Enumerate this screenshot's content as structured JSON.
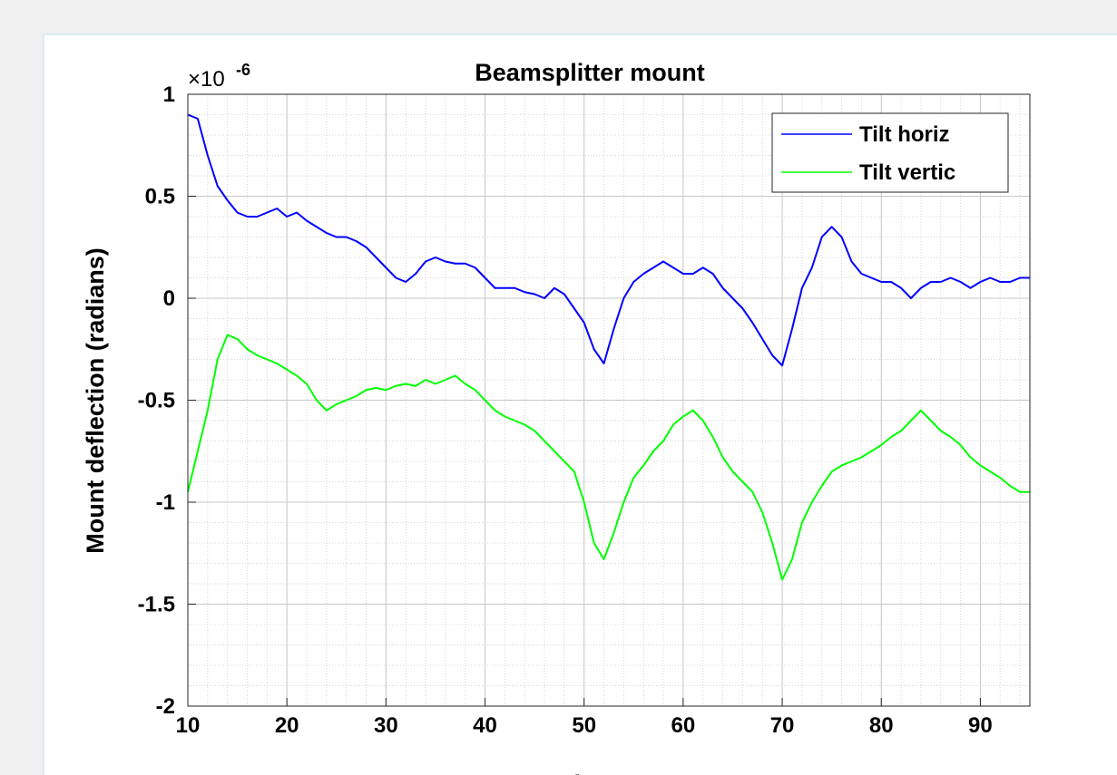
{
  "chart_data": {
    "type": "line",
    "title": "Beamsplitter mount",
    "xlabel": "hours",
    "ylabel": "Mount deflection (radians)",
    "y_multiplier": "×10",
    "y_multiplier_exponent": "-6",
    "x": [
      10,
      11,
      12,
      13,
      14,
      15,
      16,
      17,
      18,
      19,
      20,
      21,
      22,
      23,
      24,
      25,
      26,
      27,
      28,
      29,
      30,
      31,
      32,
      33,
      34,
      35,
      36,
      37,
      38,
      39,
      40,
      41,
      42,
      43,
      44,
      45,
      46,
      47,
      48,
      49,
      50,
      51,
      52,
      53,
      54,
      55,
      56,
      57,
      58,
      59,
      60,
      61,
      62,
      63,
      64,
      65,
      66,
      67,
      68,
      69,
      70,
      71,
      72,
      73,
      74,
      75,
      76,
      77,
      78,
      79,
      80,
      81,
      82,
      83,
      84,
      85,
      86,
      87,
      88,
      89,
      90,
      91,
      92,
      93,
      94,
      95
    ],
    "series": [
      {
        "name": "Tilt horiz",
        "color": "#0000ff",
        "values": [
          0.9,
          0.88,
          0.7,
          0.55,
          0.48,
          0.42,
          0.4,
          0.4,
          0.42,
          0.44,
          0.4,
          0.42,
          0.38,
          0.35,
          0.32,
          0.3,
          0.3,
          0.28,
          0.25,
          0.2,
          0.15,
          0.1,
          0.08,
          0.12,
          0.18,
          0.2,
          0.18,
          0.17,
          0.17,
          0.15,
          0.1,
          0.05,
          0.05,
          0.05,
          0.03,
          0.02,
          0.0,
          0.05,
          0.02,
          -0.05,
          -0.12,
          -0.25,
          -0.32,
          -0.15,
          0.0,
          0.08,
          0.12,
          0.15,
          0.18,
          0.15,
          0.12,
          0.12,
          0.15,
          0.12,
          0.05,
          0.0,
          -0.05,
          -0.12,
          -0.2,
          -0.28,
          -0.33,
          -0.15,
          0.05,
          0.15,
          0.3,
          0.35,
          0.3,
          0.18,
          0.12,
          0.1,
          0.08,
          0.08,
          0.05,
          0.0,
          0.05,
          0.08,
          0.08,
          0.1,
          0.08,
          0.05,
          0.08,
          0.1,
          0.08,
          0.08,
          0.1,
          0.1
        ]
      },
      {
        "name": "Tilt vertic",
        "color": "#00ff00",
        "values": [
          -0.95,
          -0.75,
          -0.55,
          -0.3,
          -0.18,
          -0.2,
          -0.25,
          -0.28,
          -0.3,
          -0.32,
          -0.35,
          -0.38,
          -0.42,
          -0.5,
          -0.55,
          -0.52,
          -0.5,
          -0.48,
          -0.45,
          -0.44,
          -0.45,
          -0.43,
          -0.42,
          -0.43,
          -0.4,
          -0.42,
          -0.4,
          -0.38,
          -0.42,
          -0.45,
          -0.5,
          -0.55,
          -0.58,
          -0.6,
          -0.62,
          -0.65,
          -0.7,
          -0.75,
          -0.8,
          -0.85,
          -1.0,
          -1.2,
          -1.28,
          -1.15,
          -1.0,
          -0.88,
          -0.82,
          -0.75,
          -0.7,
          -0.62,
          -0.58,
          -0.55,
          -0.6,
          -0.68,
          -0.78,
          -0.85,
          -0.9,
          -0.95,
          -1.05,
          -1.2,
          -1.38,
          -1.28,
          -1.1,
          -1.0,
          -0.92,
          -0.85,
          -0.82,
          -0.8,
          -0.78,
          -0.75,
          -0.72,
          -0.68,
          -0.65,
          -0.6,
          -0.55,
          -0.6,
          -0.65,
          -0.68,
          -0.72,
          -0.78,
          -0.82,
          -0.85,
          -0.88,
          -0.92,
          -0.95,
          -0.95
        ]
      }
    ],
    "xlim": [
      10,
      95
    ],
    "xticks": [
      10,
      20,
      30,
      40,
      50,
      60,
      70,
      80,
      90
    ],
    "ylim": [
      -2,
      1
    ],
    "yticks": [
      1,
      0.5,
      0,
      -0.5,
      -1,
      -1.5,
      -2
    ],
    "grid": true,
    "minor_grid": true,
    "legend": "top-right"
  }
}
